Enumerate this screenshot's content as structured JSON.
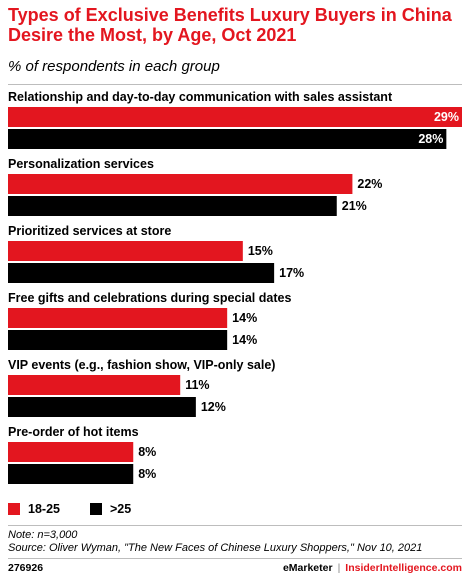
{
  "header": {
    "title": "Types of Exclusive Benefits Luxury Buyers in China Desire the Most, by Age, Oct 2021",
    "subtitle": "% of respondents in each group"
  },
  "colors": {
    "series_a": "#e3161f",
    "series_b": "#000000",
    "divider": "#bdbdbd"
  },
  "chart_data": {
    "type": "bar",
    "orientation": "horizontal",
    "categories": [
      "Relationship and day-to-day communication with sales assistant",
      "Personalization services",
      "Prioritized services at store",
      "Free gifts and celebrations during special dates",
      "VIP events (e.g., fashion show, VIP-only sale)",
      "Pre-order of hot items"
    ],
    "series": [
      {
        "name": "18-25",
        "color": "#e3161f",
        "values": [
          29,
          22,
          15,
          14,
          11,
          8
        ]
      },
      {
        "name": ">25",
        "color": "#000000",
        "values": [
          28,
          21,
          17,
          14,
          12,
          8
        ]
      }
    ],
    "value_suffix": "%",
    "xlim": [
      0,
      29
    ],
    "legend_position": "bottom-left",
    "grid": false
  },
  "legend": {
    "a": "18-25",
    "b": ">25"
  },
  "notes": {
    "note": "Note: n=3,000",
    "source": "Source: Oliver Wyman, \"The New Faces of Chinese Luxury Shoppers,\" Nov 10, 2021"
  },
  "footer": {
    "id": "276926",
    "brand_left": "eMarketer",
    "separator": "|",
    "brand_right": "InsiderIntelligence.com"
  }
}
